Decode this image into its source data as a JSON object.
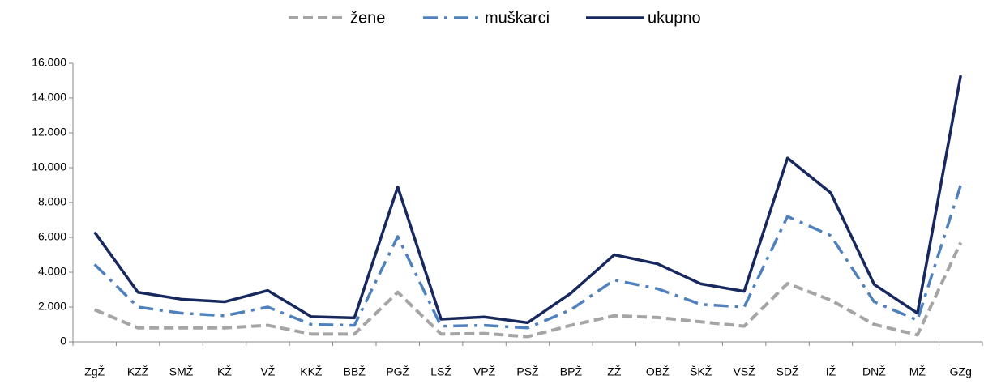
{
  "chart_data": {
    "type": "line",
    "categories": [
      "ZgŽ",
      "KZŽ",
      "SMŽ",
      "KŽ",
      "VŽ",
      "KKŽ",
      "BBŽ",
      "PGŽ",
      "LSŽ",
      "VPŽ",
      "PSŽ",
      "BPŽ",
      "ZŽ",
      "OBŽ",
      "ŠKŽ",
      "VSŽ",
      "SDŽ",
      "IŽ",
      "DNŽ",
      "MŽ",
      "GZg"
    ],
    "series": [
      {
        "name": "žene",
        "color": "#a5a5a5",
        "dash": "dashed",
        "values": [
          1850,
          800,
          800,
          800,
          950,
          450,
          450,
          2850,
          450,
          480,
          300,
          950,
          1500,
          1400,
          1150,
          900,
          3350,
          2400,
          1000,
          400,
          5700
        ]
      },
      {
        "name": "muškarci",
        "color": "#4f81bd",
        "dash": "dash-dot",
        "values": [
          4450,
          2000,
          1650,
          1500,
          2000,
          1000,
          950,
          6050,
          900,
          950,
          800,
          1850,
          3550,
          3050,
          2150,
          2000,
          7200,
          6100,
          2300,
          1250,
          9000
        ]
      },
      {
        "name": "ukupno",
        "color": "#17285e",
        "dash": "solid",
        "values": [
          6300,
          2850,
          2450,
          2300,
          2950,
          1450,
          1380,
          8900,
          1300,
          1430,
          1100,
          2800,
          5000,
          4480,
          3330,
          2900,
          10550,
          8550,
          3300,
          1650,
          15300
        ]
      }
    ],
    "ylim": [
      0,
      16000
    ],
    "yticks": [
      0,
      {
        "value": 2000,
        "label": "2.000"
      },
      {
        "value": 4000,
        "label": "4.000"
      },
      {
        "value": 6000,
        "label": "6.000"
      },
      {
        "value": 8000,
        "label": "8.000"
      },
      {
        "value": 10000,
        "label": "10.000"
      },
      {
        "value": 12000,
        "label": "12.000"
      },
      {
        "value": 14000,
        "label": "14.000"
      },
      {
        "value": 16000,
        "label": "16.000"
      }
    ],
    "legend": "top",
    "grid": false
  }
}
